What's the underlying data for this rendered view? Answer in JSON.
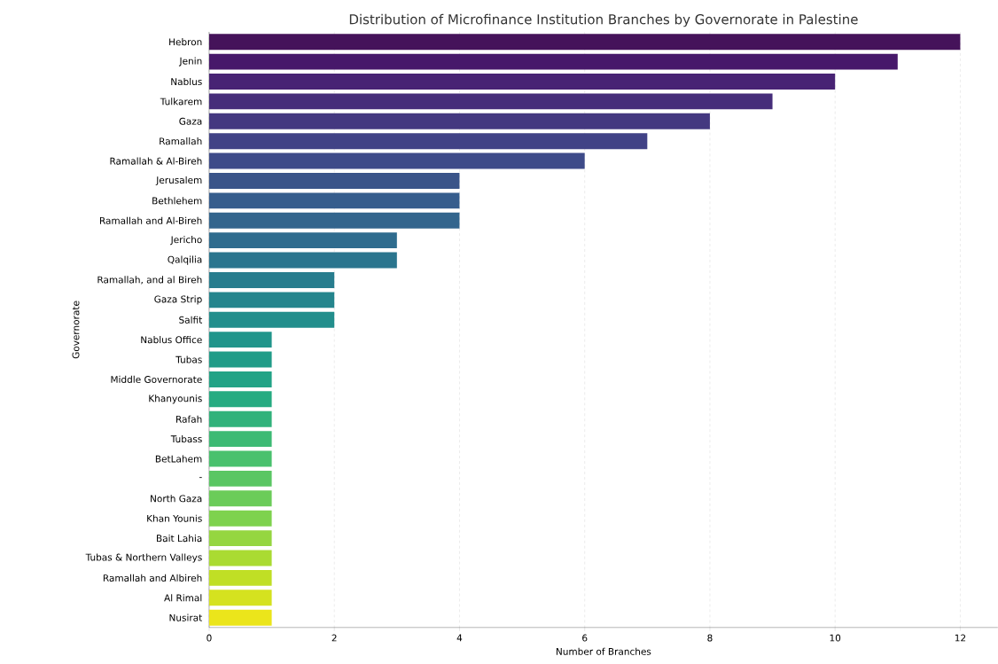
{
  "chart_data": {
    "type": "bar",
    "orientation": "horizontal",
    "title": "Distribution of Microfinance Institution Branches by Governorate in Palestine",
    "xlabel": "Number of Branches",
    "ylabel": "Governorate",
    "categories": [
      "Hebron",
      "Jenin",
      "Nablus",
      "Tulkarem",
      "Gaza",
      "Ramallah",
      "Ramallah & Al-Bireh",
      "Jerusalem",
      "Bethlehem",
      "Ramallah and Al-Bireh",
      "Jericho",
      "Qalqilia",
      "Ramallah, and al Bireh",
      "Gaza Strip",
      "Salfit",
      "Nablus Office",
      "Tubas",
      "Middle Governorate",
      "Khanyounis",
      "Rafah",
      "Tubass",
      "BetLahem",
      "-",
      "North Gaza",
      "Khan Younis",
      "Bait Lahia",
      "Tubas & Northern Valleys",
      "Ramallah and Albireh",
      "Al Rimal",
      "Nusirat"
    ],
    "values": [
      12,
      11,
      10,
      9,
      8,
      7,
      6,
      4,
      4,
      4,
      3,
      3,
      2,
      2,
      2,
      1,
      1,
      1,
      1,
      1,
      1,
      1,
      1,
      1,
      1,
      1,
      1,
      1,
      1,
      1
    ],
    "colors": [
      "#45135a",
      "#47186a",
      "#482374",
      "#462d7a",
      "#443880",
      "#414286",
      "#3e4b89",
      "#3a5489",
      "#365d8d",
      "#33658d",
      "#2f6c8e",
      "#2b758e",
      "#287d8e",
      "#25858d",
      "#228e8c",
      "#21958b",
      "#219c88",
      "#22a386",
      "#26ab81",
      "#31b27b",
      "#3dba74",
      "#49c16d",
      "#5ac663",
      "#6bcc59",
      "#7ed24e",
      "#95d640",
      "#aadb32",
      "#c0df25",
      "#d5e21f",
      "#ebe51b"
    ],
    "xlim": [
      0,
      12.6
    ],
    "xticks": [
      0,
      2,
      4,
      6,
      8,
      10,
      12
    ],
    "grid": "x"
  }
}
